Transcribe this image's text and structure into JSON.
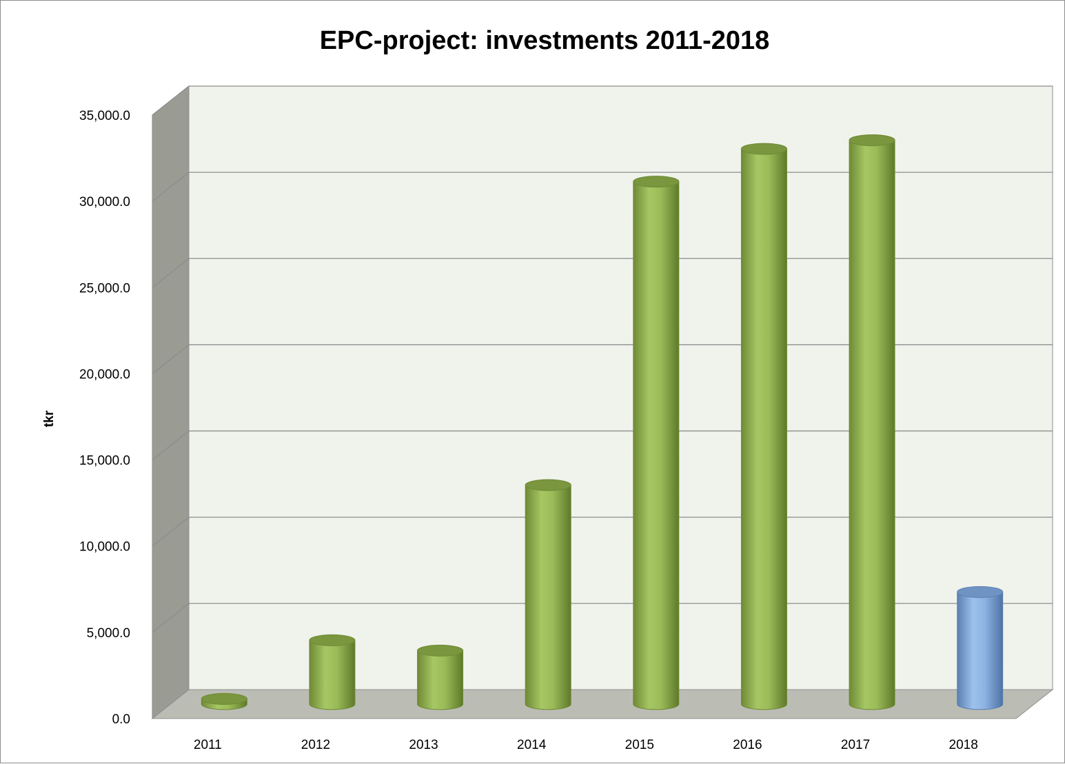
{
  "chart_data": {
    "type": "bar",
    "style": "3d-cylinder",
    "title": "EPC-project: investments 2011-2018",
    "xlabel": "",
    "ylabel": "tkr",
    "categories": [
      "2011",
      "2012",
      "2013",
      "2014",
      "2015",
      "2016",
      "2017",
      "2018"
    ],
    "values": [
      300,
      3700,
      3100,
      12700,
      30300,
      32200,
      32700,
      6500
    ],
    "bar_colors": [
      "#9bbb59",
      "#9bbb59",
      "#9bbb59",
      "#9bbb59",
      "#9bbb59",
      "#9bbb59",
      "#9bbb59",
      "#8db3e2"
    ],
    "ylim": [
      0,
      35000
    ],
    "yticks": [
      0,
      5000,
      10000,
      15000,
      20000,
      25000,
      30000,
      35000
    ],
    "ytick_labels": [
      "0.0",
      "5,000.0",
      "10,000.0",
      "15,000.0",
      "20,000.0",
      "25,000.0",
      "30,000.0",
      "35,000.0"
    ],
    "grid": true,
    "legend": "none"
  },
  "colors": {
    "back_wall": "#f0f3ec",
    "side_wall": "#9a9c94",
    "floor": "#bbbdb4",
    "gridline": "#8c8c8c",
    "green_bar": "#9bbb59",
    "green_bar_dark": "#6f8a35",
    "green_bar_top": "#7a963e",
    "blue_bar": "#8db3e2",
    "blue_bar_dark": "#5b80b2",
    "blue_bar_top": "#6f94c4"
  }
}
